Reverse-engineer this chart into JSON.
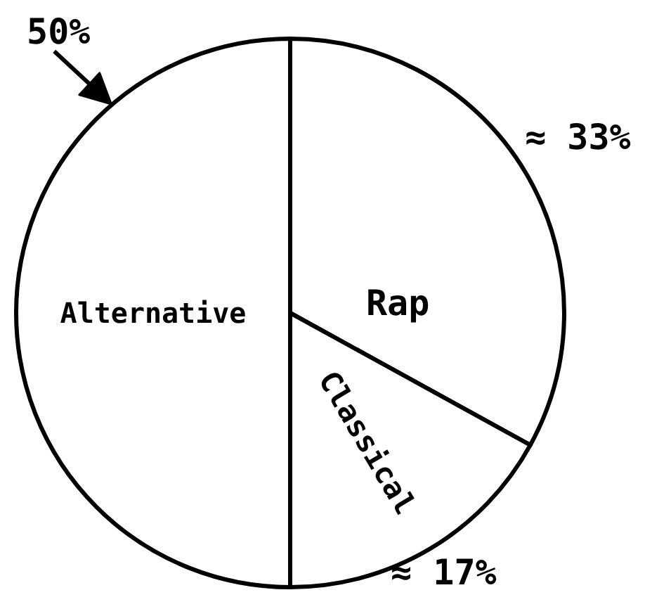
{
  "chart_data": {
    "type": "pie",
    "categories": [
      "Rap",
      "Classical",
      "Alternative"
    ],
    "values": [
      33,
      17,
      50
    ],
    "colors": [
      "#ffffff",
      "#ffffff",
      "#ffffff"
    ],
    "value_labels": [
      "≈ 33%",
      "≈ 17%",
      "50%"
    ]
  }
}
